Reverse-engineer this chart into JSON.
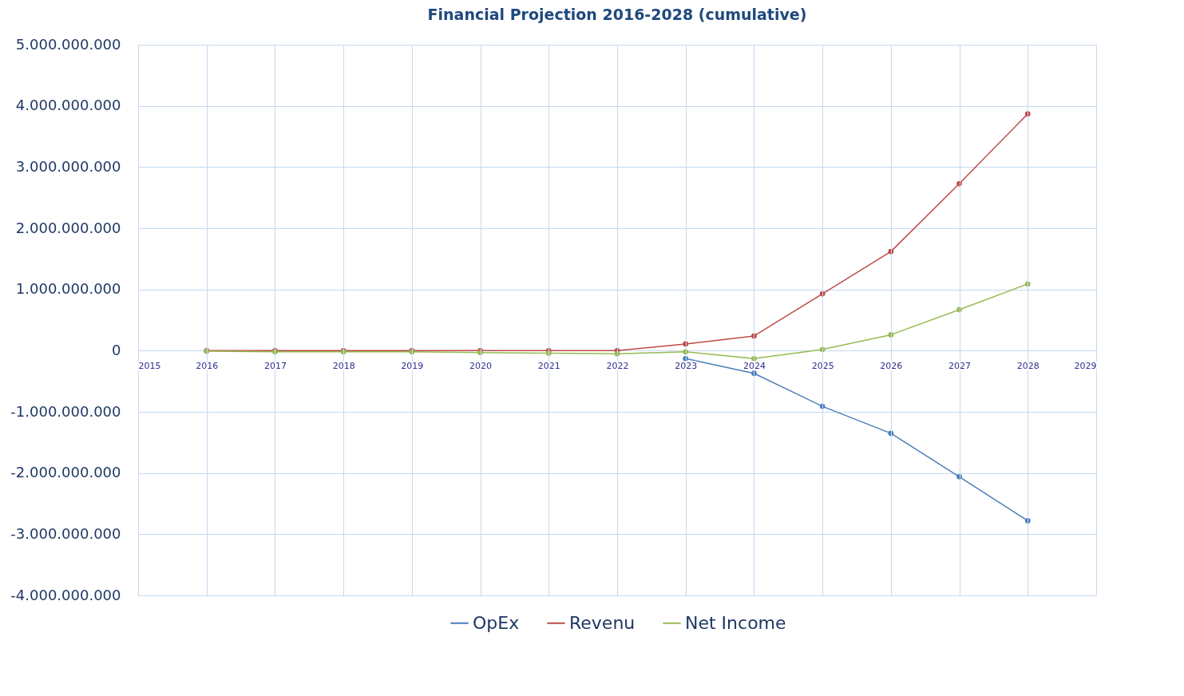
{
  "chart_data": {
    "type": "line",
    "title": "Financial Projection 2016-2028 (cumulative)",
    "x": [
      2016,
      2017,
      2018,
      2019,
      2020,
      2021,
      2022,
      2023,
      2024,
      2025,
      2026,
      2027,
      2028
    ],
    "series": [
      {
        "name": "OpEx",
        "color": "#4a7ebb",
        "values": [
          null,
          null,
          null,
          null,
          null,
          null,
          null,
          -130000000,
          -370000000,
          -910000000,
          -1350000000,
          -2060000000,
          -2780000000
        ]
      },
      {
        "name": "Revenu",
        "color": "#be4b48",
        "values": [
          0,
          0,
          0,
          0,
          0,
          0,
          0,
          110000000,
          240000000,
          930000000,
          1620000000,
          2730000000,
          3870000000
        ]
      },
      {
        "name": "Net Income",
        "color": "#98b954",
        "values": [
          -10000000,
          -20000000,
          -20000000,
          -20000000,
          -30000000,
          -40000000,
          -50000000,
          -20000000,
          -130000000,
          20000000,
          260000000,
          670000000,
          1090000000
        ]
      }
    ],
    "xlim": [
      2015,
      2029
    ],
    "xticks": [
      2015,
      2016,
      2017,
      2018,
      2019,
      2020,
      2021,
      2022,
      2023,
      2024,
      2025,
      2026,
      2027,
      2028,
      2029
    ],
    "ylim": [
      -4000000000,
      5000000000
    ],
    "yticks": [
      {
        "value": -4000000000,
        "label": "-4.000.000.000"
      },
      {
        "value": -3000000000,
        "label": "-3.000.000.000"
      },
      {
        "value": -2000000000,
        "label": "-2.000.000.000"
      },
      {
        "value": -1000000000,
        "label": "-1.000.000.000"
      },
      {
        "value": 0,
        "label": "0"
      },
      {
        "value": 1000000000,
        "label": "1.000.000.000"
      },
      {
        "value": 2000000000,
        "label": "2.000.000.000"
      },
      {
        "value": 3000000000,
        "label": "3.000.000.000"
      },
      {
        "value": 4000000000,
        "label": "4.000.000.000"
      },
      {
        "value": 5000000000,
        "label": "5.000.000.000"
      }
    ],
    "grid": true,
    "legend": "bottom",
    "marker": "circle",
    "line_style": "solid"
  }
}
